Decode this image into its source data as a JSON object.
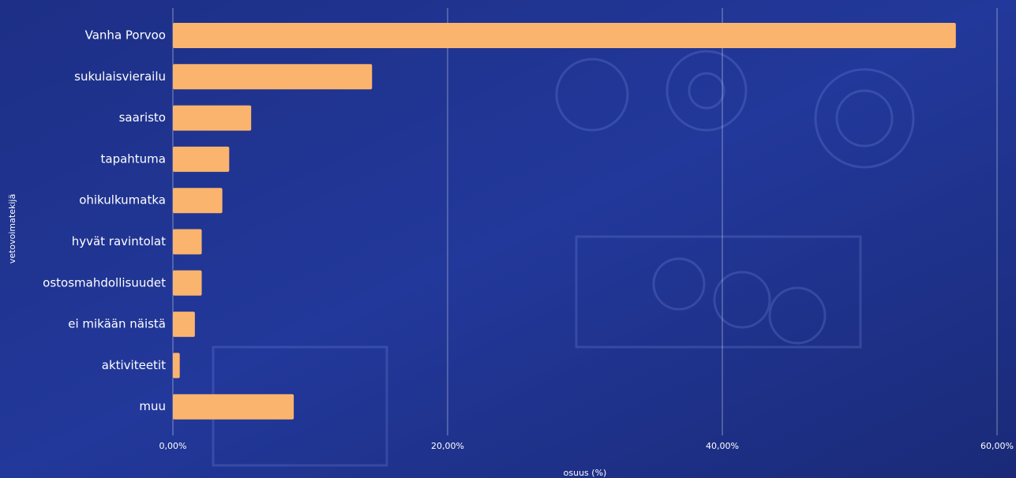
{
  "chart_data": {
    "type": "bar",
    "orientation": "horizontal",
    "x_label": "osuus (%)",
    "y_label": "vetovoimatekijä",
    "categories": [
      "Vanha Porvoo",
      "sukulaisvierailu",
      "saaristo",
      "tapahtuma",
      "ohikulkumatka",
      "hyvät ravintolat",
      "ostosmahdollisuudet",
      "ei mikään näistä",
      "aktiviteetit",
      "muu"
    ],
    "values": [
      57.0,
      14.5,
      5.7,
      4.1,
      3.6,
      2.1,
      2.1,
      1.6,
      0.5,
      8.8
    ],
    "color": "#fbb46e",
    "xlim": [
      0,
      60
    ],
    "xticks": [
      {
        "value": 0,
        "label": "0,00%"
      },
      {
        "value": 20,
        "label": "20,00%"
      },
      {
        "value": 40,
        "label": "40,00%"
      },
      {
        "value": 60,
        "label": "60,00%"
      }
    ],
    "grid": true
  }
}
